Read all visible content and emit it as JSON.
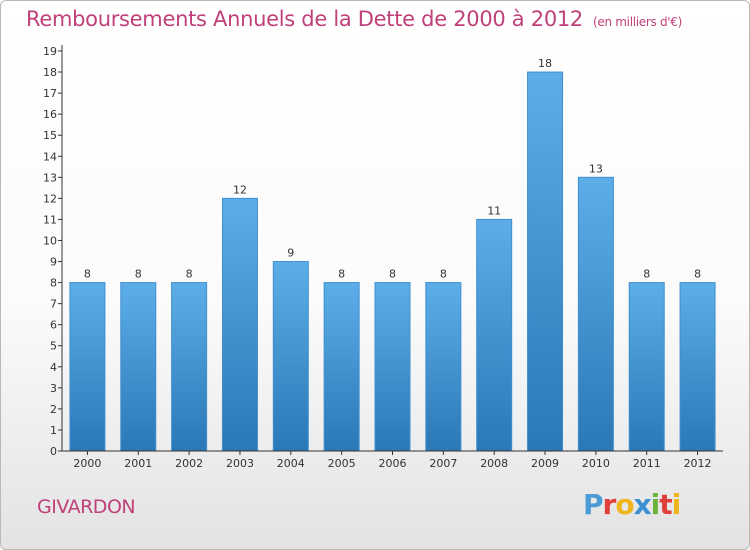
{
  "title": "Remboursements Annuels de la Dette de 2000 à 2012",
  "unit": "(en milliers d'€)",
  "commune": "GIVARDON",
  "logo": {
    "text": "Proxiti",
    "letters": [
      {
        "char": "P",
        "color": "#4a9bd6"
      },
      {
        "char": "r",
        "color": "#e0403c"
      },
      {
        "char": "o",
        "color": "#f0b41c"
      },
      {
        "char": "x",
        "color": "#3c8fd0"
      },
      {
        "char": "i",
        "color": "#6cb33c"
      },
      {
        "char": "t",
        "color": "#e0403c"
      },
      {
        "char": "i",
        "color": "#f0b41c"
      }
    ]
  },
  "colors": {
    "bar_top": "#5daee8",
    "bar_bottom": "#2a78b6",
    "title": "#c0407a"
  },
  "chart_data": {
    "type": "bar",
    "categories": [
      "2000",
      "2001",
      "2002",
      "2003",
      "2004",
      "2005",
      "2006",
      "2007",
      "2008",
      "2009",
      "2010",
      "2011",
      "2012"
    ],
    "values": [
      8,
      8,
      8,
      12,
      9,
      8,
      8,
      8,
      11,
      18,
      13,
      8,
      8
    ],
    "ylim": [
      0,
      19
    ],
    "yticks": [
      0,
      1,
      2,
      3,
      4,
      5,
      6,
      7,
      8,
      9,
      10,
      11,
      12,
      13,
      14,
      15,
      16,
      17,
      18,
      19
    ],
    "grid": false,
    "legend": "none"
  }
}
